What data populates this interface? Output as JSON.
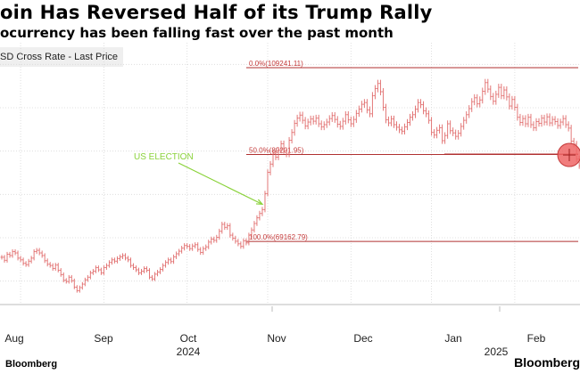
{
  "header": {
    "title": "oin Has Reversed Half of its Trump Rally",
    "subtitle": "ocurrency has been falling fast over the past month",
    "series_label": "SD Cross Rate - Last Price"
  },
  "footer": {
    "source": "Bloomberg",
    "brand": "Bloomberg"
  },
  "colors": {
    "price": "#e06a6a",
    "fib_line": "#b03030",
    "fib_text": "#c43a3a",
    "annotation": "#8ad23a",
    "marker": "#ee6666",
    "grid": "#d8d8d8"
  },
  "chart_data": {
    "type": "line",
    "x_axis": {
      "months": [
        "Aug",
        "Sep",
        "Oct",
        "Nov",
        "Dec",
        "Jan",
        "Feb"
      ],
      "years": [
        "2024",
        "2025"
      ]
    },
    "y_axis": {
      "ylim": [
        55000,
        115000
      ],
      "grid": true,
      "tick_labels_visible": false
    },
    "fib_levels": [
      {
        "label": "0.0%(109241.11)",
        "value": 109241.11
      },
      {
        "label": "50.0%(89201.95)",
        "value": 89201.95
      },
      {
        "label": "100.0%(69162.79)",
        "value": 69162.79
      }
    ],
    "annotation": {
      "label": "US ELECTION",
      "date_index": 97
    },
    "current_marker": {
      "value": 89100
    },
    "series": [
      {
        "name": "",
        "start_date": "2024-07-25",
        "values": [
          65500,
          64800,
          66200,
          65900,
          66800,
          66500,
          65300,
          64900,
          64100,
          63800,
          64600,
          65300,
          66800,
          67100,
          66500,
          65900,
          64700,
          63900,
          63600,
          62900,
          63700,
          62500,
          61500,
          60200,
          59900,
          60900,
          60100,
          58600,
          57800,
          58500,
          59300,
          60300,
          60900,
          61900,
          62300,
          63100,
          62600,
          61900,
          63100,
          63600,
          64300,
          64900,
          64600,
          65200,
          65600,
          65900,
          65300,
          64900,
          63600,
          63100,
          62600,
          61900,
          62300,
          62900,
          62500,
          60900,
          60500,
          61600,
          62100,
          62700,
          63600,
          64300,
          64900,
          64500,
          65600,
          66300,
          66900,
          67600,
          68200,
          68000,
          67500,
          68100,
          68400,
          67300,
          66600,
          67500,
          67900,
          69000,
          69700,
          69400,
          70100,
          71500,
          73100,
          72400,
          72800,
          70600,
          69900,
          69200,
          68600,
          68000,
          69300,
          68800,
          70600,
          71800,
          73300,
          74600,
          75600,
          76500,
          80200,
          85100,
          87000,
          89500,
          88600,
          90200,
          91700,
          90100,
          89300,
          92500,
          94300,
          96400,
          97600,
          98300,
          97100,
          95800,
          96700,
          97400,
          96900,
          97600,
          96300,
          95600,
          96100,
          96700,
          97500,
          98200,
          97300,
          96200,
          95700,
          96900,
          98400,
          97200,
          96300,
          97300,
          98700,
          99700,
          100800,
          101200,
          99500,
          98600,
          102800,
          104400,
          105600,
          103700,
          100100,
          97200,
          96500,
          97400,
          96100,
          95500,
          94900,
          94600,
          95600,
          96600,
          97800,
          98400,
          99700,
          101200,
          100700,
          99300,
          98600,
          97100,
          94300,
          93700,
          94800,
          95400,
          92400,
          93600,
          96300,
          94700,
          94200,
          93400,
          94100,
          95700,
          97100,
          98400,
          99800,
          101400,
          102300,
          100900,
          101800,
          103800,
          105800,
          104300,
          102600,
          101500,
          103100,
          104700,
          102800,
          104100,
          102500,
          100400,
          101900,
          100100,
          97800,
          96600,
          97500,
          96300,
          97800,
          96100,
          95400,
          96800,
          96400,
          97600,
          96700,
          97900,
          96500,
          97300,
          96800,
          95900,
          96700,
          97500,
          96100,
          95300,
          92300,
          91600,
          88200,
          86600
        ]
      }
    ]
  }
}
